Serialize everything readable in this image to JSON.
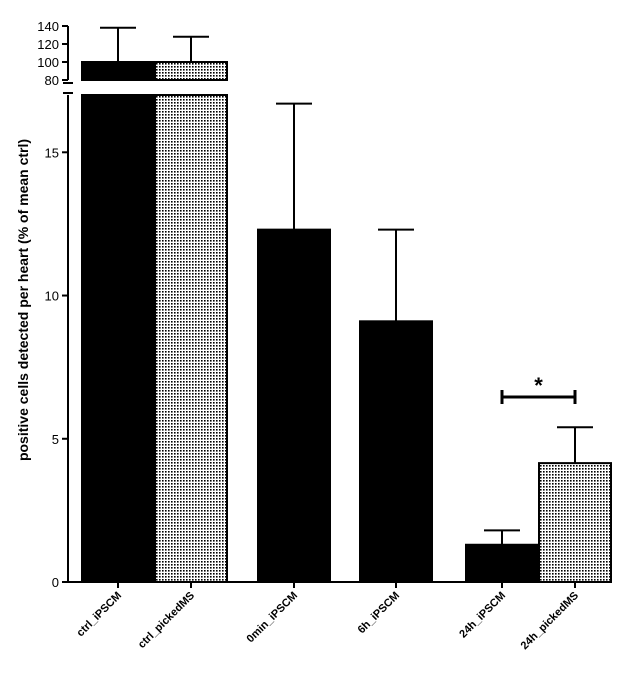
{
  "chart_data": {
    "type": "bar",
    "ylabel": "positive cells detected per heart (% of mean ctrl)",
    "broken_axis": true,
    "lower_segment": {
      "ylim": [
        0,
        17
      ],
      "ticks": [
        0,
        5,
        10,
        15
      ],
      "tick_labels": [
        "0",
        "5",
        "10",
        "15"
      ]
    },
    "upper_segment": {
      "ylim": [
        80,
        140
      ],
      "ticks": [
        80,
        100,
        120,
        140
      ],
      "tick_labels": [
        "80",
        "100",
        "120",
        "140"
      ]
    },
    "categories": [
      "ctrl_iPSCM",
      "ctrl_pickedMS",
      "0min_iPSCM",
      "6h_iPSCM",
      "24h_iPSCM",
      "24h_pickedMS"
    ],
    "values": [
      100,
      100,
      12.3,
      9.1,
      1.3,
      4.15
    ],
    "errors": [
      38,
      28,
      4.4,
      3.2,
      0.5,
      1.25
    ],
    "fills": [
      "solid",
      "pattern",
      "solid",
      "solid",
      "solid",
      "pattern"
    ],
    "significance": {
      "from": "24h_iPSCM",
      "to": "24h_pickedMS",
      "label": "*"
    },
    "colors": {
      "solid": "#000000",
      "pattern_bg": "#ffffff",
      "pattern_fg": "#000000"
    }
  }
}
